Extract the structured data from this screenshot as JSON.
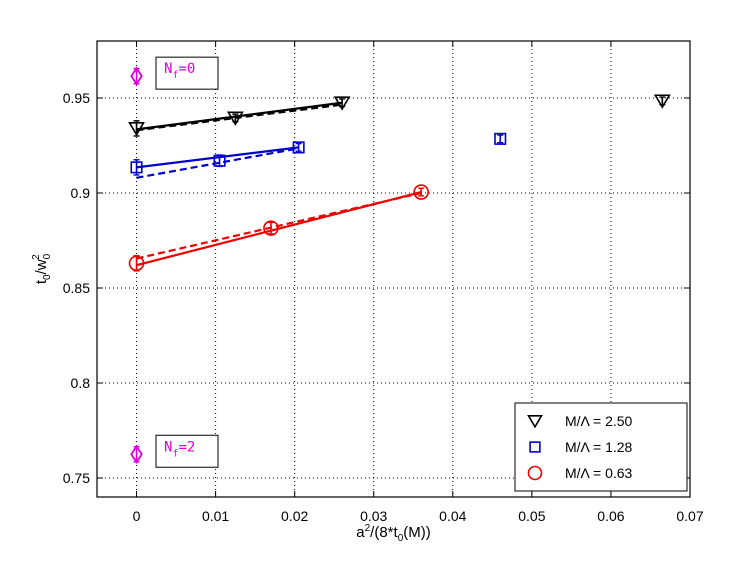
{
  "chart_data": {
    "type": "scatter",
    "title": "",
    "xlabel": {
      "base": "a",
      "sup": "2",
      "mid": "/(8*t",
      "sub": "0",
      "tail": "(M))"
    },
    "ylabel": {
      "base": "t",
      "sub1": "0",
      "mid": "/w",
      "sub2": "0",
      "sup": "2"
    },
    "xlim": [
      -0.005,
      0.07
    ],
    "ylim": [
      0.74,
      0.98
    ],
    "xticks": [
      0,
      0.01,
      0.02,
      0.03,
      0.04,
      0.05,
      0.06,
      0.07
    ],
    "xtick_labels": [
      "0",
      "0.01",
      "0.02",
      "0.03",
      "0.04",
      "0.05",
      "0.06",
      "0.07"
    ],
    "yticks": [
      0.75,
      0.8,
      0.85,
      0.9,
      0.95
    ],
    "ytick_labels": [
      "0.75",
      "0.8",
      "0.85",
      "0.9",
      "0.95"
    ],
    "grid": true,
    "legend_position": "bottom-right",
    "series": [
      {
        "name": "M/Λ = 2.50",
        "marker": "triangle-down",
        "color": "#000000",
        "points": [
          {
            "x": 0.0,
            "y": 0.934,
            "err": 0.004
          },
          {
            "x": 0.0125,
            "y": 0.9395,
            "err": 0.002
          },
          {
            "x": 0.026,
            "y": 0.9475,
            "err": 0.002
          },
          {
            "x": 0.0665,
            "y": 0.9485,
            "err": 0.002
          }
        ],
        "fit_solid": [
          [
            0.0,
            0.9335
          ],
          [
            0.026,
            0.9475
          ]
        ],
        "fit_dashed": [
          [
            0.0,
            0.933
          ],
          [
            0.026,
            0.9465
          ]
        ]
      },
      {
        "name": "M/Λ = 1.28",
        "marker": "square",
        "color": "#0000cc",
        "points": [
          {
            "x": 0.0,
            "y": 0.9135,
            "err": 0.004
          },
          {
            "x": 0.0105,
            "y": 0.917,
            "err": 0.003
          },
          {
            "x": 0.0205,
            "y": 0.924,
            "err": 0.002
          },
          {
            "x": 0.046,
            "y": 0.9285,
            "err": 0.002
          }
        ],
        "fit_solid": [
          [
            0.0,
            0.9135
          ],
          [
            0.0205,
            0.924
          ]
        ],
        "fit_dashed": [
          [
            0.0,
            0.908
          ],
          [
            0.0205,
            0.9235
          ]
        ]
      },
      {
        "name": "M/Λ = 0.63",
        "marker": "circle",
        "color": "#ee0000",
        "points": [
          {
            "x": 0.0,
            "y": 0.863,
            "err": 0.004
          },
          {
            "x": 0.017,
            "y": 0.8815,
            "err": 0.003
          },
          {
            "x": 0.036,
            "y": 0.9005,
            "err": 0.002
          }
        ],
        "fit_solid": [
          [
            0.0,
            0.862
          ],
          [
            0.036,
            0.9005
          ]
        ],
        "fit_dashed": [
          [
            0.0,
            0.8655
          ],
          [
            0.036,
            0.9
          ]
        ]
      }
    ],
    "reference_points": [
      {
        "label_base": "N",
        "label_sub": "f",
        "label_tail": "=0",
        "x": 0.0,
        "y": 0.9615,
        "err": 0.004,
        "color": "#dd00dd",
        "marker": "diamond"
      },
      {
        "label_base": "N",
        "label_sub": "f",
        "label_tail": "=2",
        "x": 0.0,
        "y": 0.7625,
        "err": 0.004,
        "color": "#dd00dd",
        "marker": "diamond"
      }
    ]
  }
}
